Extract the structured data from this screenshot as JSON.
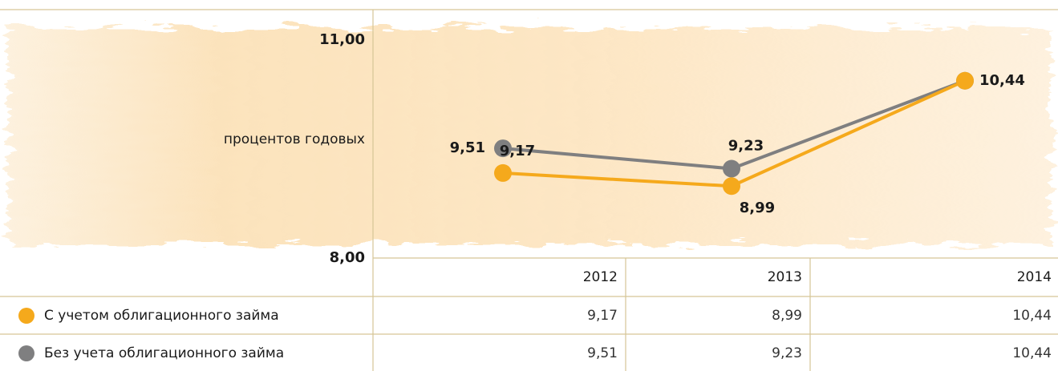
{
  "chart_data": {
    "type": "line",
    "ylabel": "процентов годовых",
    "categories": [
      "2012",
      "2013",
      "2014"
    ],
    "series": [
      {
        "name": "С учетом облигационного займа",
        "color": "#f5a91c",
        "values": [
          9.17,
          8.99,
          10.44
        ],
        "value_labels": [
          "9,17",
          "8,99",
          "10,44"
        ]
      },
      {
        "name": "Без учета облигационного займа",
        "color": "#7f7f80",
        "values": [
          9.51,
          9.23,
          10.44
        ],
        "value_labels": [
          "9,51",
          "9,23",
          "10,44"
        ]
      }
    ],
    "ylim": [
      8,
      11
    ],
    "yticks": [
      {
        "value": 8,
        "label": "8,00"
      },
      {
        "value": 11,
        "label": "11,00"
      }
    ]
  }
}
